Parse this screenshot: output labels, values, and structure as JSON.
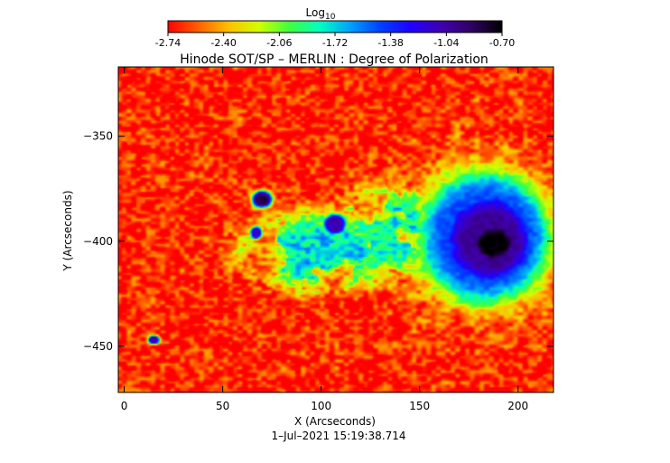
{
  "chart_data": {
    "type": "heatmap",
    "title": "Hinode SOT/SP – MERLIN : Degree of Polarization",
    "xlabel": "X (Arcseconds)",
    "ylabel": "Y (Arcseconds)",
    "xlim": [
      -3,
      218
    ],
    "ylim": [
      -472,
      -317
    ],
    "x_ticks": [
      0,
      50,
      100,
      150,
      200
    ],
    "y_ticks": [
      -350,
      -400,
      -450
    ],
    "colorbar": {
      "label_base": "Log",
      "label_sub": "10",
      "range": [
        -2.74,
        -0.7
      ],
      "ticks": [
        "-2.74",
        "-2.40",
        "-2.06",
        "-1.72",
        "-1.38",
        "-1.04",
        "-0.70"
      ],
      "colormap": [
        "#ff0000",
        "#ff6000",
        "#ffc000",
        "#d0ff00",
        "#40ff40",
        "#00ffc0",
        "#00a0ff",
        "#0040ff",
        "#2000ff",
        "#4000b0",
        "#300060",
        "#000000"
      ]
    },
    "background_value": -2.7,
    "features": [
      {
        "label": "sunspot-umbra",
        "x": 188,
        "y": -401,
        "rx": 12,
        "ry": 10,
        "value": -0.7
      },
      {
        "label": "sunspot-penumbra",
        "x": 185,
        "y": -399,
        "rx": 24,
        "ry": 23,
        "value": -1.0
      },
      {
        "label": "sunspot-halo",
        "x": 182,
        "y": -398,
        "rx": 32,
        "ry": 30,
        "value": -1.45
      },
      {
        "label": "pore",
        "x": 70,
        "y": -380,
        "rx": 5,
        "ry": 4,
        "value": -0.85
      },
      {
        "label": "pore",
        "x": 107,
        "y": -392,
        "rx": 6,
        "ry": 5,
        "value": -1.05
      },
      {
        "label": "pore",
        "x": 67,
        "y": -396,
        "rx": 3,
        "ry": 3,
        "value": -1.1
      },
      {
        "label": "pore",
        "x": 15,
        "y": -447,
        "rx": 3,
        "ry": 2,
        "value": -1.1
      },
      {
        "label": "plage",
        "x": 100,
        "y": -405,
        "rx": 55,
        "ry": 26,
        "value": -1.75
      },
      {
        "label": "plage",
        "x": 135,
        "y": -395,
        "rx": 35,
        "ry": 30,
        "value": -1.8
      }
    ]
  },
  "footer": {
    "timestamp": "1–Jul–2021 15:19:38.714"
  }
}
